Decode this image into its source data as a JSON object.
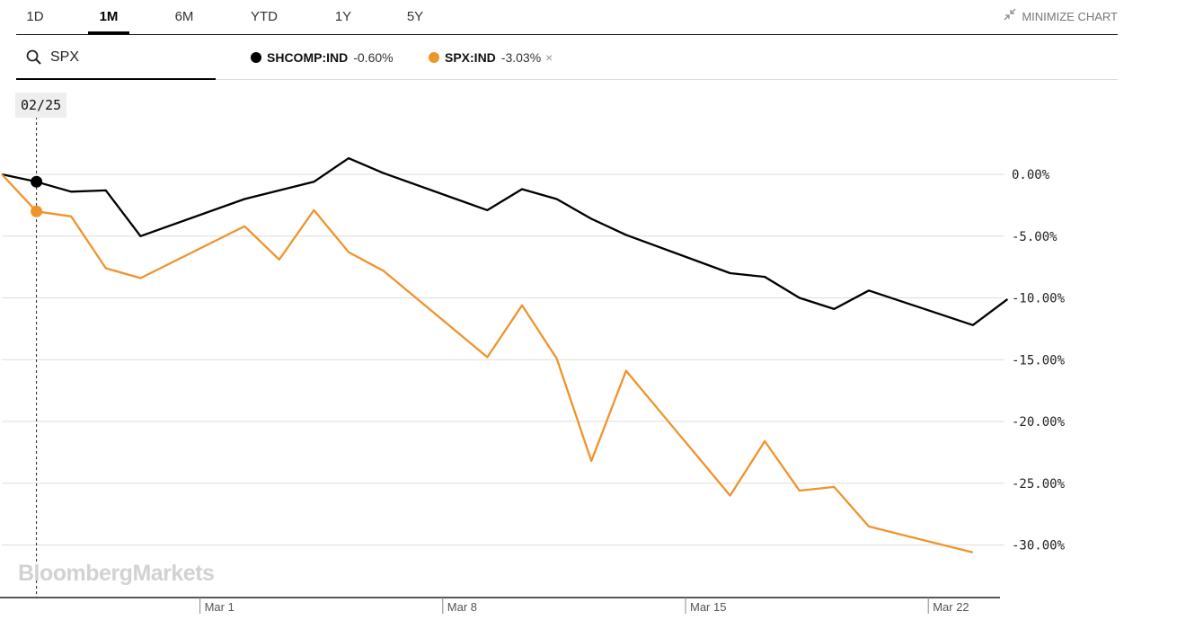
{
  "timeframe_tabs": [
    "1D",
    "1M",
    "6M",
    "YTD",
    "1Y",
    "5Y"
  ],
  "active_tab": "1M",
  "minimize_label": "MINIMIZE CHART",
  "search": {
    "value": "SPX",
    "icon": "search-icon"
  },
  "legend": [
    {
      "name": "SHCOMP:IND",
      "change": "-0.60%",
      "color": "#000000",
      "removable": false
    },
    {
      "name": "SPX:IND",
      "change": "-3.03%",
      "color": "#f0932b",
      "removable": true,
      "remove_glyph": "×"
    }
  ],
  "crosshair_date": "02/25",
  "brand": "BloombergMarkets",
  "chart_data": {
    "type": "line",
    "xlabel": "",
    "ylabel": "",
    "y_unit": "%",
    "ylim": [
      -34.0,
      1.5
    ],
    "yticks": [
      0,
      -5,
      -10,
      -15,
      -20,
      -25,
      -30
    ],
    "ytick_labels": [
      "0.00%",
      "-5.00%",
      "-10.00%",
      "-15.00%",
      "-20.00%",
      "-25.00%",
      "-30.00%"
    ],
    "x_dates": [
      "02/24",
      "02/25",
      "02/26",
      "02/27",
      "02/28",
      "03/02",
      "03/03",
      "03/04",
      "03/05",
      "03/06",
      "03/09",
      "03/10",
      "03/11",
      "03/12",
      "03/13",
      "03/16",
      "03/17",
      "03/18",
      "03/19",
      "03/20",
      "03/23",
      "03/24"
    ],
    "x_ticks": [
      "Mar 1",
      "Mar 8",
      "Mar 15",
      "Mar 22"
    ],
    "crosshair_index": 1,
    "series": [
      {
        "name": "SHCOMP:IND",
        "color": "#000000",
        "values": [
          0.0,
          -0.6,
          -1.4,
          -1.3,
          -5.0,
          -2.0,
          -1.3,
          -0.6,
          1.3,
          0.1,
          -2.9,
          -1.2,
          -2.0,
          -3.6,
          -4.9,
          -8.0,
          -8.3,
          -10.0,
          -10.9,
          -9.4,
          -12.2,
          -10.1
        ]
      },
      {
        "name": "SPX:IND",
        "color": "#f0932b",
        "values": [
          0.0,
          -3.0,
          -3.4,
          -7.6,
          -8.4,
          -4.2,
          -6.9,
          -2.9,
          -6.3,
          -7.8,
          -14.8,
          -10.6,
          -14.9,
          -23.2,
          -15.9,
          -26.0,
          -21.6,
          -25.6,
          -25.3,
          -28.5,
          -30.6,
          null
        ]
      }
    ],
    "grid": true,
    "axis_labels_side": "right"
  }
}
